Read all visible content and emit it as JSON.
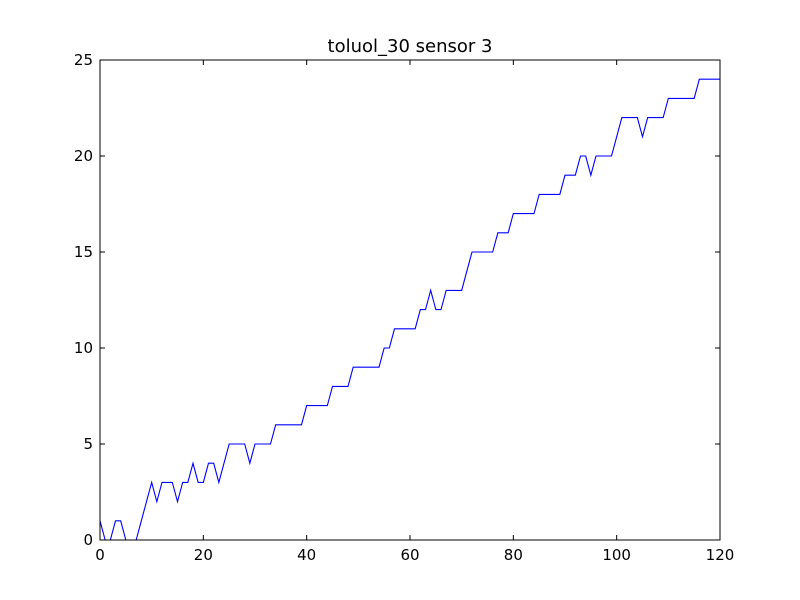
{
  "chart_data": {
    "type": "line",
    "title": "toluol_30 sensor 3",
    "xlabel": "",
    "ylabel": "",
    "xlim": [
      0,
      120
    ],
    "ylim": [
      0,
      25
    ],
    "x_ticks": [
      0,
      20,
      40,
      60,
      80,
      100,
      120
    ],
    "y_ticks": [
      0,
      5,
      10,
      15,
      20,
      25
    ],
    "grid": false,
    "line_color": "#0000ff",
    "series": [
      {
        "x": [
          0,
          1,
          2,
          3,
          4,
          5,
          6,
          7,
          8,
          9,
          10,
          11,
          12,
          13,
          14,
          15,
          16,
          17,
          18,
          19,
          20,
          21,
          22,
          23,
          24,
          25,
          26,
          27,
          28,
          29,
          30,
          31,
          32,
          33,
          34,
          35,
          36,
          37,
          38,
          39,
          40,
          41,
          42,
          43,
          44,
          45,
          46,
          47,
          48,
          49,
          50,
          51,
          52,
          53,
          54,
          55,
          56,
          57,
          58,
          59,
          60,
          61,
          62,
          63,
          64,
          65,
          66,
          67,
          68,
          69,
          70,
          71,
          72,
          73,
          74,
          75,
          76,
          77,
          78,
          79,
          80,
          81,
          82,
          83,
          84,
          85,
          86,
          87,
          88,
          89,
          90,
          91,
          92,
          93,
          94,
          95,
          96,
          97,
          98,
          99,
          100,
          101,
          102,
          103,
          104,
          105,
          106,
          107,
          108,
          109,
          110,
          111,
          112,
          113,
          114,
          115,
          116,
          117,
          118,
          119,
          120
        ],
        "values": [
          1,
          0,
          0,
          1,
          1,
          0,
          0,
          0,
          1,
          2,
          3,
          2,
          3,
          3,
          3,
          2,
          3,
          3,
          4,
          3,
          3,
          4,
          4,
          3,
          4,
          5,
          5,
          5,
          5,
          4,
          5,
          5,
          5,
          5,
          6,
          6,
          6,
          6,
          6,
          6,
          7,
          7,
          7,
          7,
          7,
          8,
          8,
          8,
          8,
          9,
          9,
          9,
          9,
          9,
          9,
          10,
          10,
          11,
          11,
          11,
          11,
          11,
          12,
          12,
          13,
          12,
          12,
          13,
          13,
          13,
          13,
          14,
          15,
          15,
          15,
          15,
          15,
          16,
          16,
          16,
          17,
          17,
          17,
          17,
          17,
          18,
          18,
          18,
          18,
          18,
          19,
          19,
          19,
          20,
          20,
          19,
          20,
          20,
          20,
          20,
          21,
          22,
          22,
          22,
          22,
          21,
          22,
          22,
          22,
          22,
          23,
          23,
          23,
          23,
          23,
          23,
          24,
          24,
          24,
          24,
          24
        ]
      }
    ]
  }
}
